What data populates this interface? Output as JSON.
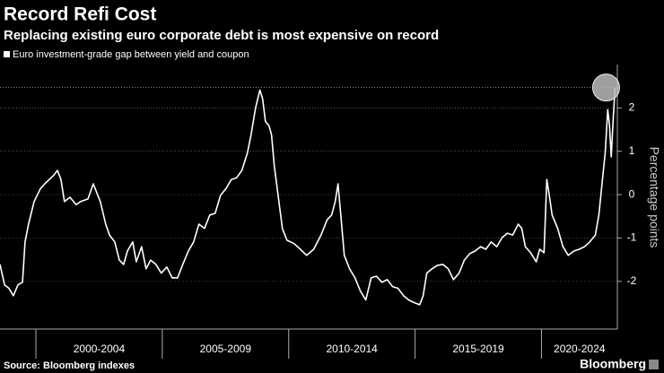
{
  "chart_data": {
    "type": "line",
    "title": "Record Refi Cost",
    "subtitle": "Replacing existing euro corporate debt is most expensive on record",
    "y_axis_label": "Percentage points",
    "source": "Source: Bloomberg indexes",
    "brand": "Bloomberg",
    "xlim": [
      1998.58,
      2023.0
    ],
    "ylim": [
      -3.1,
      3.0
    ],
    "yticks": [
      -2,
      -1,
      0,
      1,
      2
    ],
    "grid": true,
    "x_bands": [
      {
        "label": "2000-2004",
        "start": 2000,
        "end": 2005
      },
      {
        "label": "2005-2009",
        "start": 2005,
        "end": 2010
      },
      {
        "label": "2010-2014",
        "start": 2010,
        "end": 2015
      },
      {
        "label": "2015-2019",
        "start": 2015,
        "end": 2020
      },
      {
        "label": "2020-2024",
        "start": 2020,
        "end": 2025
      }
    ],
    "series": [
      {
        "name": "Euro investment-grade gap between yield and coupon",
        "color": "#ffffff",
        "x": [
          1998.58,
          1998.76,
          1998.93,
          1999.11,
          1999.29,
          1999.47,
          1999.57,
          1999.71,
          1999.93,
          2000.18,
          2000.35,
          2000.53,
          2000.71,
          2000.85,
          2000.99,
          2001.13,
          2001.35,
          2001.59,
          2001.77,
          2002.06,
          2002.27,
          2002.41,
          2002.55,
          2002.76,
          2002.91,
          2003.12,
          2003.3,
          2003.47,
          2003.62,
          2003.83,
          2003.97,
          2004.18,
          2004.36,
          2004.54,
          2004.75,
          2004.96,
          2005.18,
          2005.39,
          2005.6,
          2005.81,
          2006.03,
          2006.24,
          2006.45,
          2006.67,
          2006.88,
          2007.09,
          2007.3,
          2007.52,
          2007.73,
          2007.94,
          2008.15,
          2008.37,
          2008.51,
          2008.69,
          2008.86,
          2008.97,
          2009.08,
          2009.22,
          2009.32,
          2009.43,
          2009.57,
          2009.75,
          2009.93,
          2010.21,
          2010.46,
          2010.71,
          2010.99,
          2011.28,
          2011.52,
          2011.7,
          2011.84,
          2011.95,
          2012.06,
          2012.2,
          2012.41,
          2012.62,
          2012.84,
          2013.05,
          2013.26,
          2013.47,
          2013.69,
          2013.9,
          2014.11,
          2014.32,
          2014.54,
          2014.75,
          2014.96,
          2015.18,
          2015.32,
          2015.46,
          2015.67,
          2015.88,
          2016.1,
          2016.31,
          2016.52,
          2016.74,
          2016.95,
          2017.16,
          2017.37,
          2017.59,
          2017.8,
          2018.01,
          2018.23,
          2018.44,
          2018.65,
          2018.86,
          2019.08,
          2019.22,
          2019.36,
          2019.57,
          2019.79,
          2019.93,
          2020.1,
          2020.21,
          2020.32,
          2020.42,
          2020.64,
          2020.85,
          2021.06,
          2021.28,
          2021.49,
          2021.7,
          2021.91,
          2022.13,
          2022.27,
          2022.41,
          2022.52,
          2022.62,
          2022.69,
          2022.76,
          2022.84,
          2022.91
        ],
        "values": [
          -1.61,
          -2.08,
          -2.16,
          -2.33,
          -2.08,
          -2.02,
          -1.09,
          -0.68,
          -0.16,
          0.14,
          0.25,
          0.35,
          0.45,
          0.56,
          0.35,
          -0.16,
          -0.06,
          -0.23,
          -0.16,
          -0.1,
          0.25,
          0.04,
          -0.16,
          -0.68,
          -0.93,
          -1.09,
          -1.51,
          -1.61,
          -1.3,
          -1.09,
          -1.55,
          -1.2,
          -1.71,
          -1.51,
          -1.61,
          -1.81,
          -1.67,
          -1.92,
          -1.92,
          -1.61,
          -1.3,
          -1.09,
          -0.68,
          -0.78,
          -0.47,
          -0.43,
          -0.02,
          0.14,
          0.35,
          0.39,
          0.56,
          0.97,
          1.38,
          2.0,
          2.41,
          2.21,
          1.69,
          1.59,
          1.38,
          0.66,
          0.04,
          -0.78,
          -1.05,
          -1.13,
          -1.26,
          -1.4,
          -1.26,
          -0.93,
          -0.58,
          -0.47,
          -0.16,
          0.25,
          -0.47,
          -1.4,
          -1.71,
          -1.92,
          -2.23,
          -2.43,
          -1.92,
          -1.88,
          -2.02,
          -1.96,
          -2.12,
          -2.16,
          -2.33,
          -2.43,
          -2.49,
          -2.54,
          -2.33,
          -1.81,
          -1.71,
          -1.63,
          -1.61,
          -1.71,
          -1.96,
          -1.81,
          -1.51,
          -1.36,
          -1.3,
          -1.2,
          -1.26,
          -1.09,
          -1.2,
          -0.99,
          -0.89,
          -0.93,
          -0.68,
          -0.78,
          -1.2,
          -1.34,
          -1.55,
          -1.26,
          -1.34,
          0.35,
          -0.06,
          -0.47,
          -0.78,
          -1.2,
          -1.4,
          -1.3,
          -1.26,
          -1.2,
          -1.09,
          -0.93,
          -0.47,
          0.35,
          0.97,
          1.96,
          1.59,
          0.87,
          1.79,
          2.47
        ]
      }
    ]
  }
}
